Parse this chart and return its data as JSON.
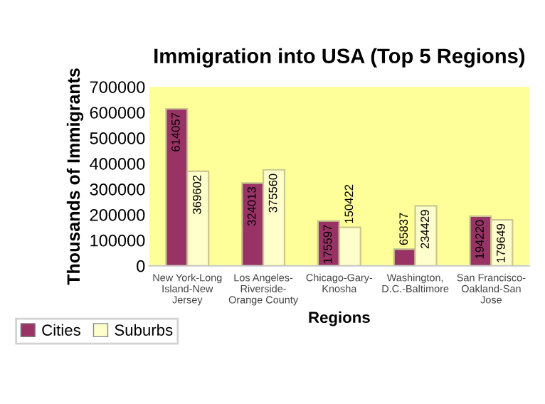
{
  "chart_data": {
    "type": "bar",
    "title": "Immigration into USA (Top 5 Regions)",
    "xlabel": "Regions",
    "ylabel": "Thousands of Immigrants",
    "categories": [
      "New York-Long Island-New Jersey",
      "Los Angeles-Riverside-Orange County",
      "Chicago-Gary-Knosha",
      "Washington, D.C.-Baltimore",
      "San Francisco-Oakland-San Jose"
    ],
    "series": [
      {
        "name": "Cities",
        "color": "#993366",
        "values": [
          614057,
          324013,
          175597,
          65837,
          194220
        ]
      },
      {
        "name": "Suburbs",
        "color": "#ffffcc",
        "values": [
          369602,
          375560,
          150422,
          234429,
          179649
        ]
      }
    ],
    "ylim": [
      0,
      700000
    ],
    "yticks": [
      0,
      100000,
      200000,
      300000,
      400000,
      500000,
      600000,
      700000
    ],
    "data_labels": true,
    "legend": "bottom left"
  }
}
